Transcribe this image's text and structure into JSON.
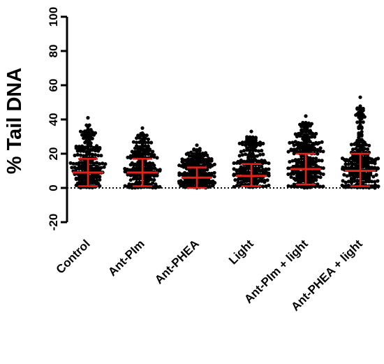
{
  "chart_data": {
    "type": "scatter",
    "title": "",
    "ylabel": "% Tail DNA",
    "xlabel": "",
    "ylim": [
      -20,
      100
    ],
    "yticks": [
      -20,
      0,
      20,
      40,
      60,
      80,
      100
    ],
    "reference_line": {
      "y": 0,
      "style": "dotted"
    },
    "grid": false,
    "legend": "none",
    "colors": {
      "points": "#000000",
      "mean_sd": "#e8201a",
      "axis": "#000000"
    },
    "categories": [
      "Control",
      "Ant-PIm",
      "Ant-PHEA",
      "Light",
      "Ant-PIm + light",
      "Ant-PHEA + light"
    ],
    "groups": [
      {
        "category": "Control",
        "mean": 9,
        "sd_low": 1,
        "sd_high": 17,
        "max": 41,
        "n": 200
      },
      {
        "category": "Ant-PIm",
        "mean": 9,
        "sd_low": 1,
        "sd_high": 17,
        "max": 35,
        "n": 200
      },
      {
        "category": "Ant-PHEA",
        "mean": 6,
        "sd_low": 0,
        "sd_high": 12,
        "max": 25,
        "n": 200
      },
      {
        "category": "Light",
        "mean": 7,
        "sd_low": 1,
        "sd_high": 14,
        "max": 33,
        "n": 200
      },
      {
        "category": "Ant-PIm + light",
        "mean": 11,
        "sd_low": 2,
        "sd_high": 20,
        "max": 42,
        "n": 250
      },
      {
        "category": "Ant-PHEA + light",
        "mean": 10,
        "sd_low": 1,
        "sd_high": 20,
        "max": 53,
        "n": 250
      }
    ]
  }
}
